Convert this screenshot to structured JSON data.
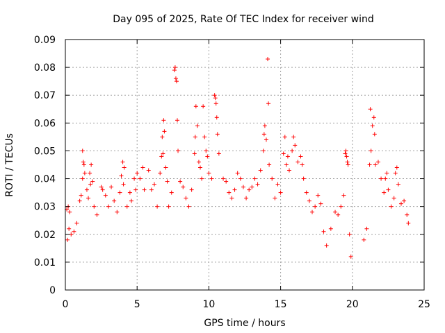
{
  "chart_data": {
    "type": "scatter",
    "title": "Day 095 of 2025, Rate Of TEC Index for receiver wind",
    "xlabel": "GPS time / hours",
    "ylabel": "ROTI / TECUs",
    "xlim": [
      0,
      25
    ],
    "ylim": [
      0,
      0.09
    ],
    "xticks": [
      "0",
      "5",
      "10",
      "15",
      "20",
      "25"
    ],
    "xtick_values": [
      0,
      5,
      10,
      15,
      20,
      25
    ],
    "yticks": [
      "0",
      "0.01",
      "0.02",
      "0.03",
      "0.04",
      "0.05",
      "0.06",
      "0.07",
      "0.08",
      "0.09"
    ],
    "ytick_values": [
      0,
      0.01,
      0.02,
      0.03,
      0.04,
      0.05,
      0.06,
      0.07,
      0.08,
      0.09
    ],
    "grid": true,
    "marker": "+",
    "color": "#ff0000",
    "series": [
      {
        "points": [
          [
            0.1,
            0.029
          ],
          [
            0.2,
            0.03
          ],
          [
            0.3,
            0.028
          ],
          [
            0.25,
            0.022
          ],
          [
            0.15,
            0.018
          ],
          [
            0.4,
            0.02
          ],
          [
            0.6,
            0.021
          ],
          [
            0.8,
            0.024
          ],
          [
            1.0,
            0.032
          ],
          [
            1.1,
            0.034
          ],
          [
            1.2,
            0.05
          ],
          [
            1.25,
            0.046
          ],
          [
            1.3,
            0.045
          ],
          [
            1.35,
            0.042
          ],
          [
            1.2,
            0.04
          ],
          [
            1.5,
            0.036
          ],
          [
            1.6,
            0.033
          ],
          [
            1.7,
            0.042
          ],
          [
            1.8,
            0.045
          ],
          [
            1.75,
            0.038
          ],
          [
            1.9,
            0.039
          ],
          [
            2.0,
            0.03
          ],
          [
            2.2,
            0.027
          ],
          [
            2.5,
            0.037
          ],
          [
            2.6,
            0.036
          ],
          [
            2.8,
            0.034
          ],
          [
            3.0,
            0.03
          ],
          [
            3.2,
            0.037
          ],
          [
            3.4,
            0.032
          ],
          [
            3.6,
            0.028
          ],
          [
            3.8,
            0.035
          ],
          [
            3.9,
            0.041
          ],
          [
            4.0,
            0.046
          ],
          [
            4.1,
            0.044
          ],
          [
            4.05,
            0.038
          ],
          [
            4.3,
            0.03
          ],
          [
            4.5,
            0.035
          ],
          [
            4.6,
            0.032
          ],
          [
            4.8,
            0.04
          ],
          [
            4.9,
            0.036
          ],
          [
            5.0,
            0.042
          ],
          [
            5.2,
            0.04
          ],
          [
            5.4,
            0.044
          ],
          [
            5.5,
            0.036
          ],
          [
            5.8,
            0.043
          ],
          [
            6.0,
            0.036
          ],
          [
            6.2,
            0.038
          ],
          [
            6.4,
            0.03
          ],
          [
            6.6,
            0.042
          ],
          [
            6.7,
            0.048
          ],
          [
            6.8,
            0.049
          ],
          [
            6.75,
            0.055
          ],
          [
            6.85,
            0.061
          ],
          [
            6.9,
            0.057
          ],
          [
            7.0,
            0.044
          ],
          [
            7.1,
            0.039
          ],
          [
            7.2,
            0.03
          ],
          [
            7.4,
            0.035
          ],
          [
            7.6,
            0.079
          ],
          [
            7.65,
            0.08
          ],
          [
            7.7,
            0.076
          ],
          [
            7.75,
            0.075
          ],
          [
            7.8,
            0.061
          ],
          [
            7.85,
            0.05
          ],
          [
            8.0,
            0.039
          ],
          [
            8.2,
            0.037
          ],
          [
            8.4,
            0.033
          ],
          [
            8.6,
            0.03
          ],
          [
            8.8,
            0.036
          ],
          [
            9.0,
            0.049
          ],
          [
            9.05,
            0.055
          ],
          [
            9.1,
            0.066
          ],
          [
            9.2,
            0.059
          ],
          [
            9.3,
            0.046
          ],
          [
            9.4,
            0.044
          ],
          [
            9.5,
            0.04
          ],
          [
            9.6,
            0.066
          ],
          [
            9.7,
            0.055
          ],
          [
            9.8,
            0.05
          ],
          [
            9.9,
            0.048
          ],
          [
            10.0,
            0.042
          ],
          [
            10.2,
            0.04
          ],
          [
            10.4,
            0.07
          ],
          [
            10.45,
            0.069
          ],
          [
            10.5,
            0.067
          ],
          [
            10.55,
            0.062
          ],
          [
            10.6,
            0.056
          ],
          [
            10.7,
            0.049
          ],
          [
            11.0,
            0.04
          ],
          [
            11.2,
            0.039
          ],
          [
            11.4,
            0.035
          ],
          [
            11.6,
            0.033
          ],
          [
            11.8,
            0.036
          ],
          [
            12.0,
            0.042
          ],
          [
            12.2,
            0.04
          ],
          [
            12.4,
            0.037
          ],
          [
            12.6,
            0.033
          ],
          [
            12.8,
            0.036
          ],
          [
            13.0,
            0.037
          ],
          [
            13.2,
            0.04
          ],
          [
            13.4,
            0.038
          ],
          [
            13.6,
            0.043
          ],
          [
            13.8,
            0.05
          ],
          [
            13.85,
            0.056
          ],
          [
            13.9,
            0.059
          ],
          [
            14.0,
            0.054
          ],
          [
            14.1,
            0.083
          ],
          [
            14.15,
            0.067
          ],
          [
            14.2,
            0.045
          ],
          [
            14.4,
            0.04
          ],
          [
            14.6,
            0.033
          ],
          [
            14.8,
            0.038
          ],
          [
            15.0,
            0.035
          ],
          [
            15.2,
            0.049
          ],
          [
            15.3,
            0.055
          ],
          [
            15.4,
            0.045
          ],
          [
            15.5,
            0.048
          ],
          [
            15.6,
            0.043
          ],
          [
            15.8,
            0.05
          ],
          [
            15.9,
            0.055
          ],
          [
            16.0,
            0.052
          ],
          [
            16.2,
            0.046
          ],
          [
            16.4,
            0.048
          ],
          [
            16.5,
            0.045
          ],
          [
            16.6,
            0.04
          ],
          [
            16.8,
            0.035
          ],
          [
            17.0,
            0.032
          ],
          [
            17.2,
            0.028
          ],
          [
            17.4,
            0.03
          ],
          [
            17.6,
            0.034
          ],
          [
            17.8,
            0.031
          ],
          [
            18.0,
            0.021
          ],
          [
            18.2,
            0.016
          ],
          [
            18.5,
            0.022
          ],
          [
            18.8,
            0.028
          ],
          [
            19.0,
            0.027
          ],
          [
            19.2,
            0.03
          ],
          [
            19.4,
            0.034
          ],
          [
            19.5,
            0.049
          ],
          [
            19.55,
            0.05
          ],
          [
            19.6,
            0.048
          ],
          [
            19.65,
            0.046
          ],
          [
            19.7,
            0.045
          ],
          [
            19.8,
            0.02
          ],
          [
            19.9,
            0.012
          ],
          [
            20.8,
            0.018
          ],
          [
            21.0,
            0.022
          ],
          [
            21.2,
            0.045
          ],
          [
            21.25,
            0.065
          ],
          [
            21.3,
            0.05
          ],
          [
            21.4,
            0.059
          ],
          [
            21.5,
            0.062
          ],
          [
            21.55,
            0.056
          ],
          [
            21.6,
            0.045
          ],
          [
            21.8,
            0.046
          ],
          [
            22.0,
            0.04
          ],
          [
            22.2,
            0.035
          ],
          [
            22.3,
            0.04
          ],
          [
            22.4,
            0.042
          ],
          [
            22.5,
            0.036
          ],
          [
            22.7,
            0.03
          ],
          [
            22.9,
            0.033
          ],
          [
            23.0,
            0.042
          ],
          [
            23.1,
            0.044
          ],
          [
            23.2,
            0.038
          ],
          [
            23.4,
            0.031
          ],
          [
            23.6,
            0.032
          ],
          [
            23.8,
            0.027
          ],
          [
            23.9,
            0.024
          ]
        ]
      }
    ]
  }
}
